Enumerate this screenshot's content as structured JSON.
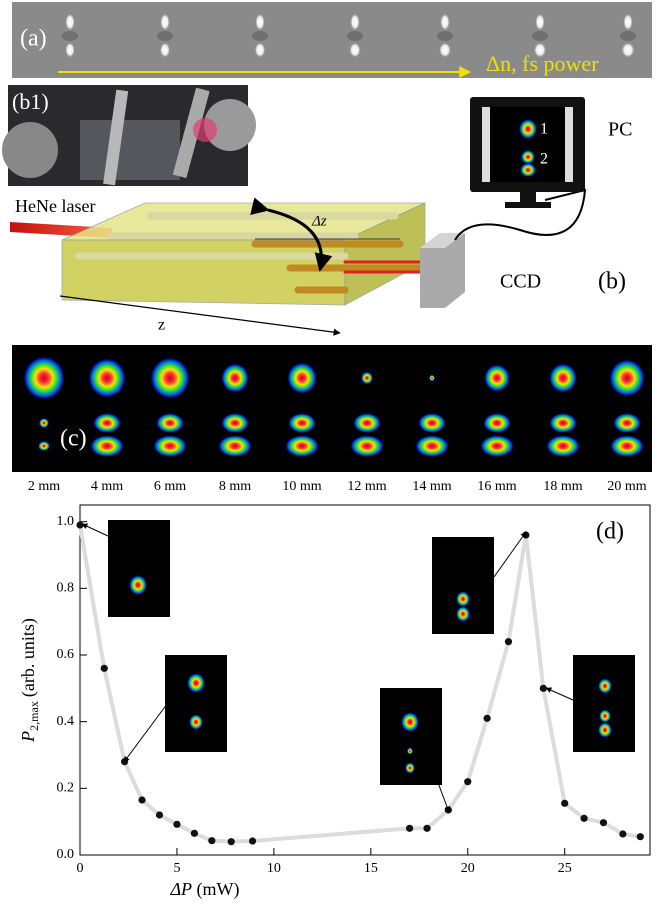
{
  "panel_a": {
    "label": "(a)",
    "annotation": "Δn, fs power"
  },
  "panel_b1": {
    "label": "(b1)"
  },
  "panel_b": {
    "label": "(b)",
    "laser": "HeNe laser",
    "dz": "Δz",
    "z": "z",
    "camera": "CCD",
    "computer": "PC",
    "modes": [
      "1",
      "2"
    ]
  },
  "panel_c": {
    "label": "(c)",
    "positions": [
      "2 mm",
      "4 mm",
      "6 mm",
      "8 mm",
      "10 mm",
      "12 mm",
      "14 mm",
      "16 mm",
      "18 mm",
      "20 mm"
    ]
  },
  "chart_data": {
    "type": "scatter",
    "label": "(d)",
    "xlabel": {
      "symbol": "ΔP",
      "units": "(mW)"
    },
    "ylabel": {
      "symbol": "P",
      "subscript": "2,max",
      "units": "(arb. units)"
    },
    "x": [
      0,
      1.25,
      2.3,
      3.2,
      4.1,
      5,
      5.9,
      6.8,
      7.8,
      8.9,
      17,
      17.9,
      19,
      20,
      21,
      22.1,
      23,
      23.9,
      25,
      26,
      27,
      28,
      28.9
    ],
    "values": [
      0.99,
      0.56,
      0.28,
      0.165,
      0.12,
      0.092,
      0.065,
      0.043,
      0.04,
      0.042,
      0.08,
      0.08,
      0.135,
      0.22,
      0.41,
      0.64,
      0.96,
      0.5,
      0.155,
      0.11,
      0.097,
      0.063,
      0.055
    ],
    "color": "#111111",
    "line_color": "#dcdcdc",
    "xlim": [
      0,
      29.4
    ],
    "ylim": [
      0,
      1.05
    ],
    "xticks": [
      0,
      5,
      10,
      15,
      20,
      25
    ],
    "yticks": [
      {
        "value": 0,
        "label": "0.0"
      },
      0.2,
      0.4,
      0.6,
      0.8,
      {
        "value": 1,
        "label": "1.0"
      }
    ]
  }
}
